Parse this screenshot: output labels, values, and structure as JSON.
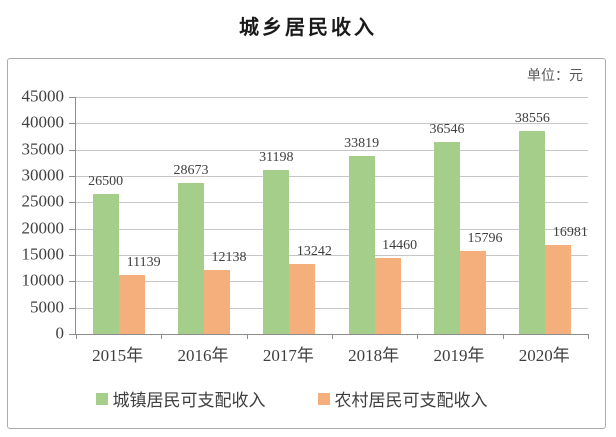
{
  "chart_data": {
    "type": "bar",
    "title": "城乡居民收入",
    "unit": "单位：元",
    "categories": [
      "2015年",
      "2016年",
      "2017年",
      "2018年",
      "2019年",
      "2020年"
    ],
    "series": [
      {
        "name": "城镇居民可支配收入",
        "color": "#a5ce8b",
        "values": [
          26500,
          28673,
          31198,
          33819,
          36546,
          38556
        ]
      },
      {
        "name": "农村居民可支配收入",
        "color": "#f4af7d",
        "values": [
          11139,
          12138,
          13242,
          14460,
          15796,
          16981
        ]
      }
    ],
    "ylim": [
      0,
      45000
    ],
    "ytick_step": 5000,
    "yticks": [
      "45000",
      "40000",
      "35000",
      "30000",
      "25000",
      "20000",
      "15000",
      "10000",
      "5000",
      "0"
    ],
    "grid": true,
    "legend_position": "bottom",
    "colors": {
      "gridline": "#c6c6c6",
      "axis": "#8c8c8c",
      "text": "#3f3f3f"
    }
  }
}
